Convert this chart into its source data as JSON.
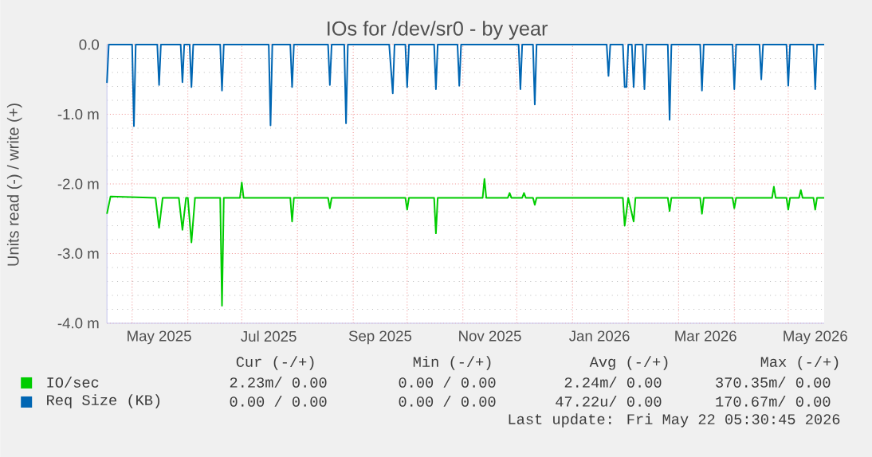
{
  "chart_data": {
    "type": "line",
    "title": "IOs for /dev/sr0 - by year",
    "ylabel": "Units read (-) / write (+)",
    "xlim": [
      "2025-04-17",
      "2026-05-21"
    ],
    "xticks": [
      {
        "value": "2025-05-01",
        "label": null
      },
      {
        "value": "2025-05-16",
        "label": "May 2025"
      },
      {
        "value": "2025-06-01",
        "label": null
      },
      {
        "value": "2025-07-01",
        "label": null
      },
      {
        "value": "2025-07-16",
        "label": "Jul 2025"
      },
      {
        "value": "2025-08-01",
        "label": null
      },
      {
        "value": "2025-09-01",
        "label": null
      },
      {
        "value": "2025-09-16",
        "label": "Sep 2025"
      },
      {
        "value": "2025-10-01",
        "label": null
      },
      {
        "value": "2025-11-01",
        "label": null
      },
      {
        "value": "2025-11-16",
        "label": "Nov 2025"
      },
      {
        "value": "2025-12-01",
        "label": null
      },
      {
        "value": "2026-01-01",
        "label": null
      },
      {
        "value": "2026-01-16",
        "label": "Jan 2026"
      },
      {
        "value": "2026-02-01",
        "label": null
      },
      {
        "value": "2026-03-01",
        "label": null
      },
      {
        "value": "2026-03-16",
        "label": "Mar 2026"
      },
      {
        "value": "2026-04-01",
        "label": null
      },
      {
        "value": "2026-05-01",
        "label": null
      },
      {
        "value": "2026-05-16",
        "label": "May 2026"
      }
    ],
    "ylim": [
      -4,
      0
    ],
    "yticks": [
      {
        "value": 0,
        "label": "0.0"
      },
      {
        "value": -1,
        "label": "-1.0 m"
      },
      {
        "value": -2,
        "label": "-2.0 m"
      },
      {
        "value": -3,
        "label": "-3.0 m"
      },
      {
        "value": -4,
        "label": "-4.0 m"
      }
    ],
    "grid": true,
    "legend": "bottom",
    "series": [
      {
        "name": "IO/sec",
        "color": "#00cc00",
        "x": [
          "2025-04-17",
          "2025-04-19",
          "2025-05-14",
          "2025-05-16",
          "2025-05-18",
          "2025-05-27",
          "2025-05-29",
          "2025-05-31",
          "2025-06-01",
          "2025-06-03",
          "2025-06-05",
          "2025-06-19",
          "2025-06-20",
          "2025-06-21",
          "2025-06-30",
          "2025-07-01",
          "2025-07-02",
          "2025-07-28",
          "2025-07-29",
          "2025-07-30",
          "2025-08-18",
          "2025-08-19",
          "2025-08-20",
          "2025-09-30",
          "2025-10-01",
          "2025-10-02",
          "2025-10-16",
          "2025-10-17",
          "2025-10-18",
          "2025-11-12",
          "2025-11-13",
          "2025-11-14",
          "2025-11-26",
          "2025-11-27",
          "2025-11-28",
          "2025-12-04",
          "2025-12-05",
          "2025-12-06",
          "2025-12-10",
          "2025-12-11",
          "2025-12-12",
          "2026-01-29",
          "2026-01-30",
          "2026-02-01",
          "2026-02-04",
          "2026-02-05",
          "2026-02-23",
          "2026-02-24",
          "2026-02-25",
          "2026-03-13",
          "2026-03-14",
          "2026-03-15",
          "2026-03-31",
          "2026-04-01",
          "2026-04-02",
          "2026-04-22",
          "2026-04-23",
          "2026-04-24",
          "2026-04-30",
          "2026-05-01",
          "2026-05-02",
          "2026-05-07",
          "2026-05-08",
          "2026-05-09",
          "2026-05-15",
          "2026-05-16",
          "2026-05-17",
          "2026-05-21"
        ],
        "values": [
          -2.43,
          -2.18,
          -2.2,
          -2.63,
          -2.2,
          -2.2,
          -2.66,
          -2.2,
          -2.2,
          -2.84,
          -2.2,
          -2.2,
          -3.75,
          -2.2,
          -2.2,
          -1.98,
          -2.2,
          -2.2,
          -2.54,
          -2.2,
          -2.2,
          -2.35,
          -2.2,
          -2.2,
          -2.37,
          -2.2,
          -2.2,
          -2.71,
          -2.2,
          -2.2,
          -1.93,
          -2.2,
          -2.2,
          -2.13,
          -2.2,
          -2.2,
          -2.13,
          -2.2,
          -2.2,
          -2.3,
          -2.2,
          -2.2,
          -2.6,
          -2.2,
          -2.54,
          -2.2,
          -2.2,
          -2.39,
          -2.2,
          -2.2,
          -2.43,
          -2.2,
          -2.2,
          -2.35,
          -2.2,
          -2.2,
          -2.04,
          -2.2,
          -2.2,
          -2.37,
          -2.2,
          -2.2,
          -2.09,
          -2.2,
          -2.2,
          -2.37,
          -2.2,
          -2.2
        ]
      },
      {
        "name": "Req Size (KB)",
        "color": "#0066b3",
        "x": [
          "2025-04-17",
          "2025-04-18",
          "2025-05-01",
          "2025-05-02",
          "2025-05-03",
          "2025-05-15",
          "2025-05-16",
          "2025-05-17",
          "2025-05-28",
          "2025-05-29",
          "2025-05-30",
          "2025-06-02",
          "2025-06-03",
          "2025-06-04",
          "2025-06-19",
          "2025-06-20",
          "2025-06-21",
          "2025-07-16",
          "2025-07-17",
          "2025-07-18",
          "2025-07-28",
          "2025-07-29",
          "2025-07-30",
          "2025-08-18",
          "2025-08-19",
          "2025-08-20",
          "2025-08-27",
          "2025-08-28",
          "2025-08-29",
          "2025-09-21",
          "2025-09-23",
          "2025-09-24",
          "2025-09-30",
          "2025-10-01",
          "2025-10-02",
          "2025-10-16",
          "2025-10-17",
          "2025-10-18",
          "2025-10-29",
          "2025-10-30",
          "2025-10-31",
          "2025-12-02",
          "2025-12-03",
          "2025-12-04",
          "2025-12-10",
          "2025-12-11",
          "2025-12-12",
          "2026-01-20",
          "2026-01-21",
          "2026-01-22",
          "2026-01-29",
          "2026-01-30",
          "2026-01-31",
          "2026-02-01",
          "2026-02-03",
          "2026-02-04",
          "2026-02-05",
          "2026-02-09",
          "2026-02-10",
          "2026-02-11",
          "2026-02-23",
          "2026-02-24",
          "2026-02-25",
          "2026-03-13",
          "2026-03-14",
          "2026-03-15",
          "2026-03-31",
          "2026-04-01",
          "2026-04-02",
          "2026-04-15",
          "2026-04-16",
          "2026-04-17",
          "2026-04-30",
          "2026-05-01",
          "2026-05-02",
          "2026-05-15",
          "2026-05-16",
          "2026-05-17",
          "2026-05-21"
        ],
        "values": [
          -0.55,
          0,
          0,
          -1.17,
          0,
          0,
          -0.58,
          0,
          0,
          -0.54,
          0,
          0,
          -0.61,
          0,
          0,
          -0.66,
          0,
          0,
          -1.16,
          0,
          0,
          -0.61,
          0,
          0,
          -0.58,
          0,
          0,
          -1.13,
          0,
          0,
          -0.7,
          0,
          0,
          -0.61,
          0,
          0,
          -0.64,
          0,
          0,
          -0.59,
          0,
          0,
          -0.64,
          0,
          0,
          -0.86,
          0,
          0,
          -0.45,
          0,
          0,
          -0.61,
          -0.61,
          0,
          0,
          -0.61,
          0,
          0,
          -0.64,
          0,
          0,
          -1.08,
          0,
          0,
          -0.66,
          0,
          0,
          -0.64,
          0,
          0,
          -0.5,
          0,
          0,
          -0.59,
          0,
          0,
          -0.64,
          0,
          0
        ]
      }
    ],
    "annotations": [
      "Cur (-/+)",
      "Min (-/+)",
      "Avg (-/+)",
      "Max (-/+)",
      "2.23m/ 0.00",
      "0.00 / 0.00",
      "2.24m/ 0.00",
      "370.35m/ 0.00",
      "0.00 / 0.00",
      "0.00 / 0.00",
      "47.22u/ 0.00",
      "170.67m/ 0.00",
      "Last update: Fri May 22 05:30:45 2026"
    ]
  }
}
